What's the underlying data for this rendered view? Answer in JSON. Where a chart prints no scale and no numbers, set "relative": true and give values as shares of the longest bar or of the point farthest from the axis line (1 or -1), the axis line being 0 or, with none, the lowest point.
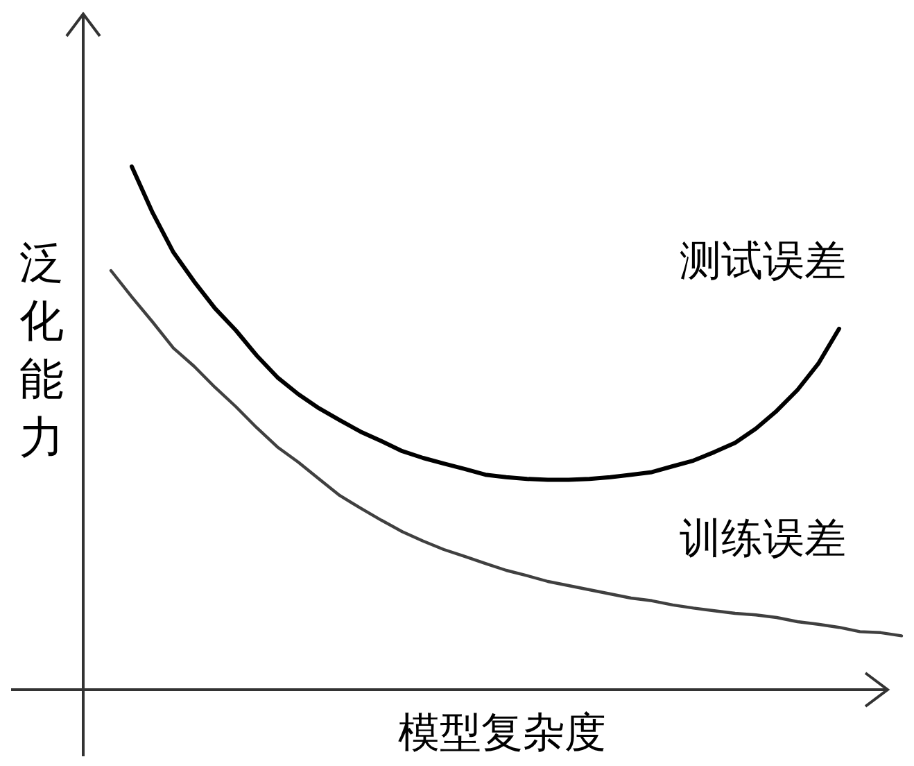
{
  "chart_data": {
    "type": "line",
    "relative": true,
    "xlabel": "模型复杂度",
    "ylabel": "泛化能力",
    "categories": [
      null,
      null,
      null,
      null,
      null,
      null,
      null,
      null,
      null,
      null,
      null,
      null,
      null,
      null,
      null,
      null,
      null,
      null,
      null,
      null,
      null,
      null,
      null,
      null,
      null,
      null,
      null,
      null,
      null,
      null,
      null,
      null,
      null,
      null,
      null,
      null,
      null,
      null,
      null
    ],
    "series": [
      {
        "name": "测试误差",
        "color": "#000000",
        "values": [
          null,
          1,
          0.912,
          0.836,
          0.78,
          0.729,
          0.687,
          0.639,
          0.597,
          0.565,
          0.538,
          0.515,
          0.493,
          0.475,
          0.456,
          0.443,
          0.432,
          0.422,
          0.411,
          0.406,
          0.403,
          0.401,
          0.401,
          0.403,
          0.406,
          0.411,
          0.416,
          0.427,
          0.438,
          0.454,
          0.472,
          0.499,
          0.533,
          0.573,
          0.623,
          0.69,
          null,
          null,
          null
        ]
      },
      {
        "name": "训练误差",
        "color": "#404040",
        "values": [
          0.801,
          0.751,
          0.703,
          0.653,
          0.618,
          0.578,
          0.541,
          0.501,
          0.464,
          0.435,
          0.403,
          0.371,
          0.347,
          0.324,
          0.302,
          0.284,
          0.268,
          0.255,
          0.241,
          0.228,
          0.218,
          0.207,
          0.199,
          0.191,
          0.183,
          0.175,
          0.17,
          0.162,
          0.156,
          0.151,
          0.146,
          0.143,
          0.138,
          0.13,
          0.125,
          0.119,
          0.111,
          0.109,
          0.103
        ]
      }
    ]
  }
}
